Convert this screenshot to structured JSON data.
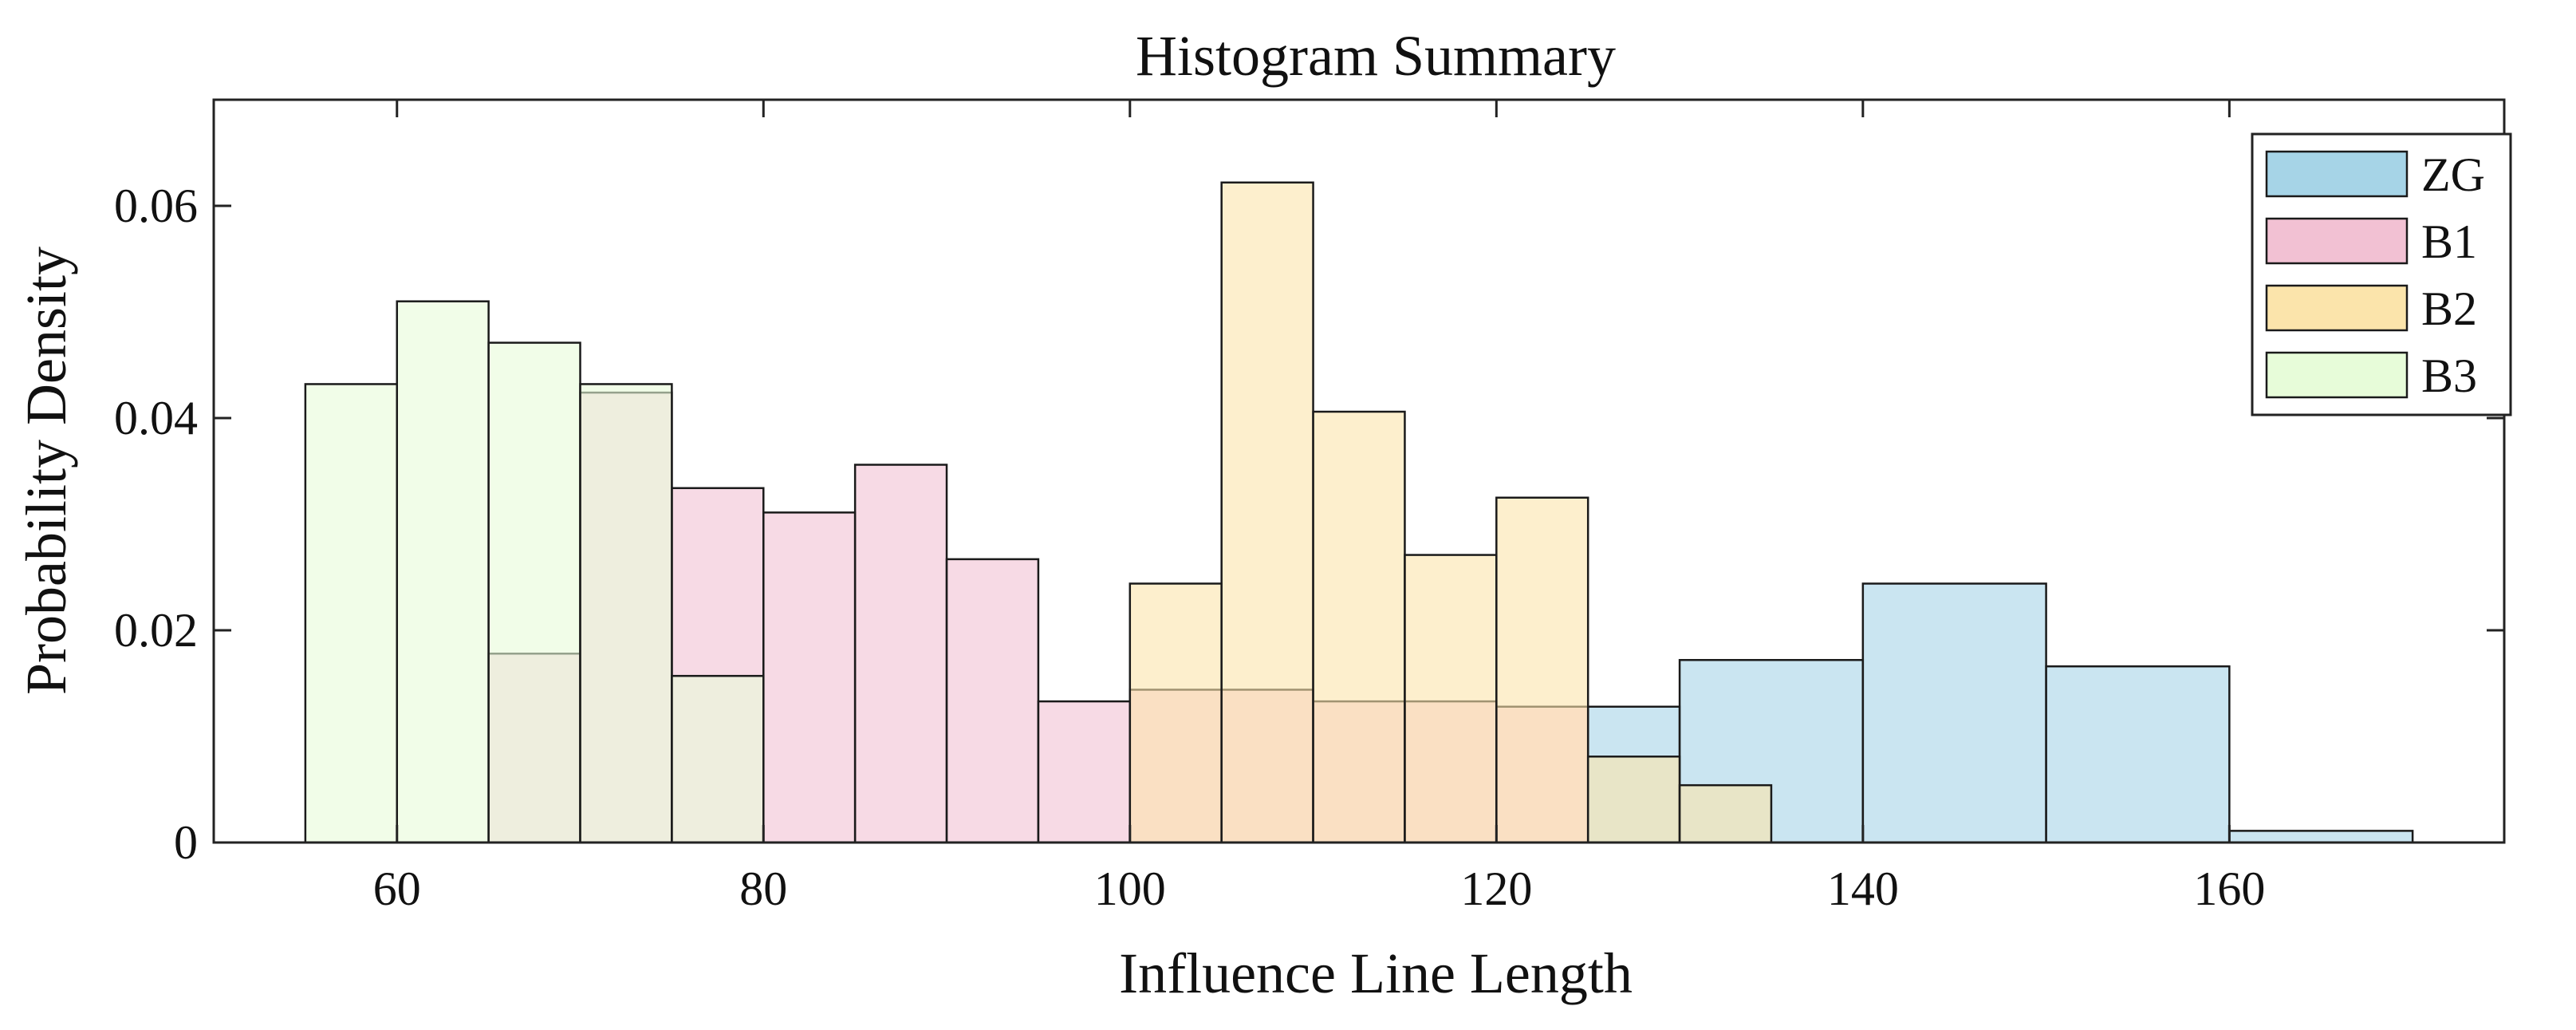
{
  "chart_data": {
    "type": "bar",
    "subtype": "histogram",
    "title": "Histogram Summary",
    "xlabel": "Influence Line Length",
    "ylabel": "Probability Density",
    "xlim": [
      50,
      175
    ],
    "ylim": [
      0,
      0.07
    ],
    "xticks": [
      60,
      80,
      100,
      120,
      140,
      160
    ],
    "yticks": [
      0,
      0.02,
      0.04,
      0.06
    ],
    "ytick_labels": [
      "0",
      "0.02",
      "0.04",
      "0.06"
    ],
    "grid": false,
    "legend_position": "top-right",
    "series": [
      {
        "name": "ZG",
        "color": "#a6d4e7",
        "bins": [
          [
            125,
            130,
            0.0128
          ],
          [
            130,
            140,
            0.0172
          ],
          [
            140,
            150,
            0.0244
          ],
          [
            150,
            160,
            0.0166
          ],
          [
            160,
            170,
            0.0011
          ]
        ]
      },
      {
        "name": "B1",
        "color": "#f2c1d3",
        "bins": [
          [
            65,
            70,
            0.0178
          ],
          [
            70,
            75,
            0.0424
          ],
          [
            75,
            80,
            0.0334
          ],
          [
            80,
            85,
            0.0311
          ],
          [
            85,
            90,
            0.0356
          ],
          [
            90,
            95,
            0.0267
          ],
          [
            95,
            100,
            0.0133
          ],
          [
            100,
            105,
            0.0144
          ],
          [
            105,
            110,
            0.0144
          ],
          [
            110,
            115,
            0.0133
          ],
          [
            115,
            120,
            0.0133
          ],
          [
            120,
            125,
            0.0128
          ]
        ]
      },
      {
        "name": "B2",
        "color": "#fbe4ab",
        "bins": [
          [
            100,
            105,
            0.0244
          ],
          [
            105,
            110,
            0.0622
          ],
          [
            110,
            115,
            0.0406
          ],
          [
            115,
            120,
            0.0271
          ],
          [
            120,
            125,
            0.0325
          ],
          [
            125,
            130,
            0.0081
          ],
          [
            130,
            135,
            0.0054
          ]
        ]
      },
      {
        "name": "B3",
        "color": "#e7fcd9",
        "bins": [
          [
            55,
            60,
            0.0432
          ],
          [
            60,
            65,
            0.051
          ],
          [
            65,
            70,
            0.0471
          ],
          [
            70,
            75,
            0.0432
          ],
          [
            75,
            80,
            0.0157
          ]
        ]
      }
    ]
  }
}
